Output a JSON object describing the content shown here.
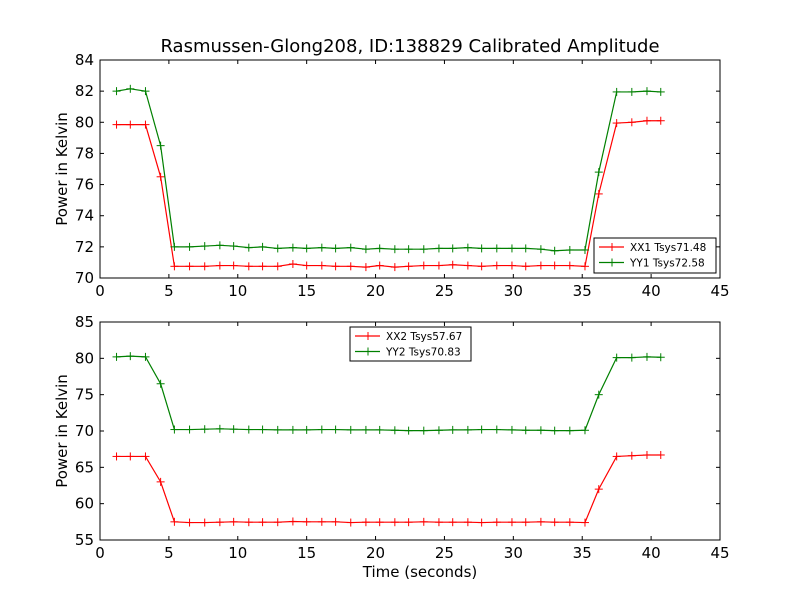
{
  "chart_data": [
    {
      "type": "line",
      "title": "Rasmussen-Glong208, ID:138829 Calibrated Amplitude",
      "xlabel": "",
      "ylabel": "Power in Kelvin",
      "xlim": [
        0,
        45
      ],
      "ylim": [
        70,
        84
      ],
      "xticks": [
        0,
        5,
        10,
        15,
        20,
        25,
        30,
        35,
        40,
        45
      ],
      "yticks": [
        70,
        72,
        74,
        76,
        78,
        80,
        82,
        84
      ],
      "legend_position": "lower-right",
      "x": [
        1.2,
        2.2,
        3.3,
        4.4,
        5.4,
        6.5,
        7.6,
        8.7,
        9.7,
        10.8,
        11.8,
        12.9,
        14.0,
        15.0,
        16.1,
        17.1,
        18.2,
        19.3,
        20.3,
        21.4,
        22.4,
        23.5,
        24.6,
        25.6,
        26.7,
        27.7,
        28.8,
        29.9,
        30.9,
        32.0,
        33.0,
        34.1,
        35.2,
        36.2,
        37.5,
        38.6,
        39.7,
        40.7
      ],
      "series": [
        {
          "name": "XX1 Tsys71.48",
          "color": "#ff0000",
          "values": [
            79.85,
            79.85,
            79.85,
            76.5,
            70.75,
            70.75,
            70.75,
            70.8,
            70.8,
            70.75,
            70.75,
            70.75,
            70.9,
            70.8,
            70.8,
            70.75,
            70.75,
            70.7,
            70.8,
            70.7,
            70.75,
            70.8,
            70.8,
            70.85,
            70.8,
            70.75,
            70.8,
            70.8,
            70.75,
            70.8,
            70.8,
            70.8,
            70.75,
            75.4,
            79.95,
            80.0,
            80.1,
            80.1
          ]
        },
        {
          "name": "YY1 Tsys72.58",
          "color": "#008000",
          "values": [
            82.0,
            82.15,
            82.0,
            78.5,
            72.0,
            72.0,
            72.05,
            72.1,
            72.05,
            71.95,
            72.0,
            71.9,
            71.95,
            71.9,
            71.95,
            71.9,
            71.95,
            71.85,
            71.9,
            71.85,
            71.85,
            71.85,
            71.9,
            71.9,
            71.95,
            71.9,
            71.9,
            71.9,
            71.9,
            71.85,
            71.75,
            71.8,
            71.8,
            76.8,
            81.95,
            81.95,
            82.0,
            81.95
          ]
        }
      ]
    },
    {
      "type": "line",
      "title": "",
      "xlabel": "Time (seconds)",
      "ylabel": "Power in Kelvin",
      "xlim": [
        0,
        45
      ],
      "ylim": [
        55,
        85
      ],
      "xticks": [
        0,
        5,
        10,
        15,
        20,
        25,
        30,
        35,
        40,
        45
      ],
      "yticks": [
        55,
        60,
        65,
        70,
        75,
        80,
        85
      ],
      "legend_position": "upper-center",
      "x": [
        1.2,
        2.2,
        3.3,
        4.4,
        5.4,
        6.5,
        7.6,
        8.7,
        9.7,
        10.8,
        11.8,
        12.9,
        14.0,
        15.0,
        16.1,
        17.1,
        18.2,
        19.3,
        20.3,
        21.4,
        22.4,
        23.5,
        24.6,
        25.6,
        26.7,
        27.7,
        28.8,
        29.9,
        30.9,
        32.0,
        33.0,
        34.1,
        35.2,
        36.2,
        37.5,
        38.6,
        39.7,
        40.7
      ],
      "series": [
        {
          "name": "XX2 Tsys57.67",
          "color": "#ff0000",
          "values": [
            66.5,
            66.5,
            66.5,
            63.0,
            57.5,
            57.4,
            57.4,
            57.45,
            57.5,
            57.45,
            57.45,
            57.45,
            57.55,
            57.5,
            57.5,
            57.5,
            57.4,
            57.45,
            57.45,
            57.45,
            57.45,
            57.5,
            57.45,
            57.45,
            57.45,
            57.4,
            57.45,
            57.45,
            57.45,
            57.5,
            57.45,
            57.45,
            57.4,
            62.0,
            66.5,
            66.6,
            66.7,
            66.7
          ]
        },
        {
          "name": "YY2 Tsys70.83",
          "color": "#008000",
          "values": [
            80.2,
            80.3,
            80.2,
            76.5,
            70.2,
            70.2,
            70.25,
            70.3,
            70.25,
            70.2,
            70.2,
            70.15,
            70.15,
            70.15,
            70.2,
            70.2,
            70.15,
            70.15,
            70.15,
            70.1,
            70.05,
            70.05,
            70.1,
            70.15,
            70.15,
            70.2,
            70.2,
            70.15,
            70.1,
            70.1,
            70.05,
            70.05,
            70.1,
            75.0,
            80.1,
            80.1,
            80.2,
            80.15
          ]
        }
      ]
    }
  ]
}
